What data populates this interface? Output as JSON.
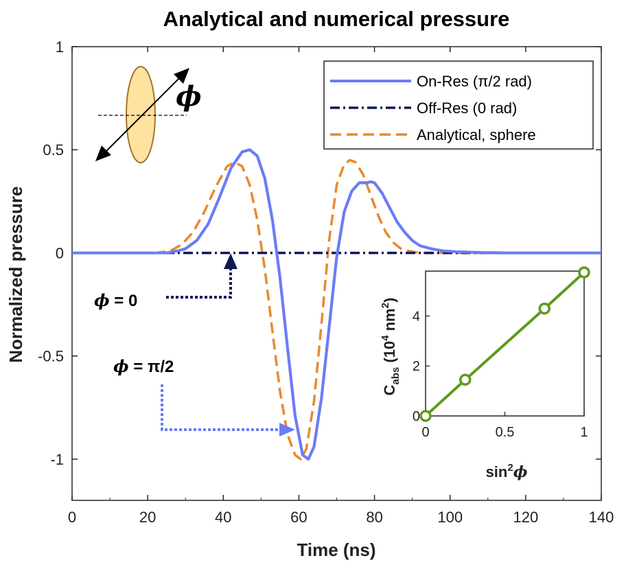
{
  "chart_data": [
    {
      "type": "line",
      "title": "Analytical and numerical pressure",
      "xlabel": "Time (ns)",
      "ylabel": "Normalized pressure",
      "xlim": [
        0,
        140
      ],
      "ylim": [
        -1.2,
        1
      ],
      "xticks": [
        "0",
        "20",
        "40",
        "60",
        "80",
        "100",
        "120",
        "140"
      ],
      "yticks": [
        "1",
        "0.5",
        "0",
        "-0.5",
        "-1"
      ],
      "grid": false,
      "legend_position": "top-right",
      "series": [
        {
          "name": "On-Res (π/2 rad)",
          "color": "#6b7cf5",
          "style": "solid",
          "x": [
            0,
            20,
            25,
            28,
            30,
            33,
            36,
            39,
            42,
            45,
            47,
            49,
            51,
            53,
            55,
            57,
            59,
            61,
            62.5,
            64,
            66,
            68,
            70,
            72,
            74,
            76,
            78,
            79,
            80,
            82,
            84,
            86,
            88,
            90,
            92,
            95,
            98,
            102,
            108,
            115,
            140
          ],
          "values": [
            0,
            0,
            0.0,
            0.01,
            0.02,
            0.06,
            0.14,
            0.27,
            0.41,
            0.49,
            0.5,
            0.47,
            0.36,
            0.16,
            -0.12,
            -0.46,
            -0.79,
            -0.98,
            -1.0,
            -0.94,
            -0.7,
            -0.36,
            -0.02,
            0.2,
            0.3,
            0.34,
            0.34,
            0.345,
            0.34,
            0.29,
            0.22,
            0.15,
            0.1,
            0.06,
            0.035,
            0.02,
            0.01,
            0.005,
            0.002,
            0.0,
            0.0
          ]
        },
        {
          "name": "Off-Res (0 rad)",
          "color": "#0f1855",
          "style": "dashdot",
          "x": [
            0,
            140
          ],
          "values": [
            0,
            0
          ]
        },
        {
          "name": "Analytical, sphere",
          "color": "#e8892f",
          "style": "dashed",
          "x": [
            0,
            22,
            26,
            29,
            32,
            35,
            38,
            41,
            43,
            45,
            47,
            49,
            51,
            53,
            55,
            57,
            59,
            60.5,
            62,
            64,
            66,
            68,
            70,
            72,
            73.5,
            75,
            77,
            79,
            81,
            83,
            85,
            87,
            89,
            91,
            93,
            140
          ],
          "values": [
            0,
            0,
            0.01,
            0.04,
            0.1,
            0.2,
            0.32,
            0.42,
            0.44,
            0.42,
            0.33,
            0.16,
            -0.08,
            -0.38,
            -0.67,
            -0.88,
            -0.98,
            -1.0,
            -0.95,
            -0.72,
            -0.34,
            0.06,
            0.33,
            0.43,
            0.45,
            0.44,
            0.38,
            0.28,
            0.18,
            0.1,
            0.05,
            0.02,
            0.01,
            0.003,
            0.0,
            0.0
          ]
        }
      ],
      "annotations": {
        "phi_zero": "ϕ = 0",
        "phi_pi2": "ϕ = π/2",
        "phi_symbol": "ϕ",
        "phi_zero_arrow_target_time": 42,
        "phi_pi2_arrow_target_time": 60
      }
    },
    {
      "type": "line",
      "placement": "inset bottom-right",
      "xlabel_main": "sin",
      "xlabel_sup": "2",
      "xlabel_sym": "ϕ",
      "ylabel_main": "C",
      "ylabel_sub": "abs",
      "ylabel_units_open": " (10",
      "ylabel_units_sup": "4",
      "ylabel_units_close": " nm",
      "ylabel_units_sup2": "2",
      "ylabel_units_end": ")",
      "xlim": [
        0,
        1
      ],
      "ylim": [
        0,
        5.8
      ],
      "xticks": [
        "0",
        "0.5",
        "1"
      ],
      "yticks": [
        "0",
        "2",
        "4"
      ],
      "color": "#5e9a1b",
      "x": [
        0,
        0.25,
        0.75,
        1.0
      ],
      "values": [
        0.0,
        1.45,
        4.3,
        5.75
      ]
    }
  ]
}
